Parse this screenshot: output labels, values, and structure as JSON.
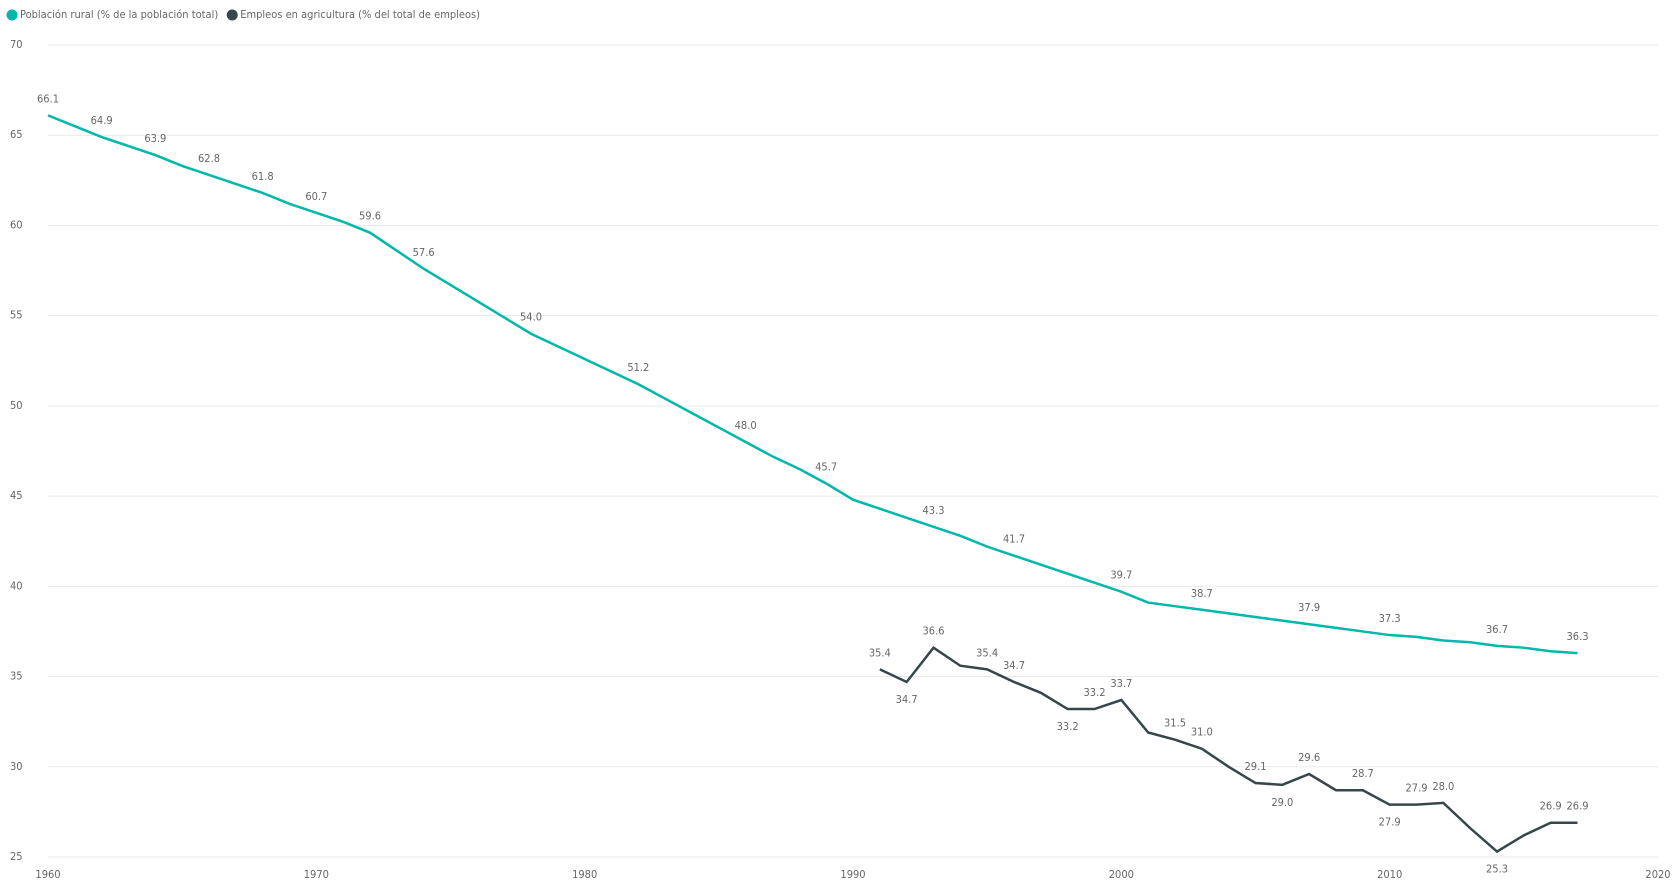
{
  "chart_data": {
    "type": "line",
    "series": [
      {
        "name": "Población rural (% de la población total)",
        "color": "#01b8aa",
        "x": [
          1960,
          1961,
          1962,
          1963,
          1964,
          1965,
          1966,
          1967,
          1968,
          1969,
          1970,
          1971,
          1972,
          1973,
          1974,
          1975,
          1976,
          1977,
          1978,
          1979,
          1980,
          1981,
          1982,
          1983,
          1984,
          1985,
          1986,
          1987,
          1988,
          1989,
          1990,
          1991,
          1992,
          1993,
          1994,
          1995,
          1996,
          1997,
          1998,
          1999,
          2000,
          2001,
          2002,
          2003,
          2004,
          2005,
          2006,
          2007,
          2008,
          2009,
          2010,
          2011,
          2012,
          2013,
          2014,
          2015,
          2016,
          2017
        ],
        "values": [
          66.1,
          65.5,
          64.9,
          64.4,
          63.9,
          63.3,
          62.8,
          62.3,
          61.8,
          61.2,
          60.7,
          60.2,
          59.6,
          58.6,
          57.6,
          56.7,
          55.8,
          54.9,
          54.0,
          53.3,
          52.6,
          51.9,
          51.2,
          50.4,
          49.6,
          48.8,
          48.0,
          47.2,
          46.5,
          45.7,
          44.8,
          44.3,
          43.8,
          43.3,
          42.8,
          42.2,
          41.7,
          41.2,
          40.7,
          40.2,
          39.7,
          39.1,
          38.9,
          38.7,
          38.5,
          38.3,
          38.1,
          37.9,
          37.7,
          37.5,
          37.3,
          37.2,
          37.0,
          36.9,
          36.7,
          36.6,
          36.4,
          36.3
        ],
        "value_labels": [
          "66.1",
          null,
          "64.9",
          null,
          "63.9",
          null,
          "62.8",
          null,
          "61.8",
          null,
          "60.7",
          null,
          "59.6",
          null,
          "57.6",
          null,
          null,
          null,
          "54.0",
          null,
          null,
          null,
          "51.2",
          null,
          null,
          null,
          "48.0",
          null,
          null,
          "45.7",
          null,
          null,
          null,
          "43.3",
          null,
          null,
          "41.7",
          null,
          null,
          null,
          "39.7",
          null,
          null,
          "38.7",
          null,
          null,
          null,
          "37.9",
          null,
          null,
          "37.3",
          null,
          null,
          null,
          "36.7",
          null,
          null,
          "36.3"
        ]
      },
      {
        "name": "Empleos en agricultura (% del total de empleos)",
        "color": "#374649",
        "x": [
          1991,
          1992,
          1993,
          1994,
          1995,
          1996,
          1997,
          1998,
          1999,
          2000,
          2001,
          2002,
          2003,
          2004,
          2005,
          2006,
          2007,
          2008,
          2009,
          2010,
          2011,
          2012,
          2013,
          2014,
          2015,
          2016,
          2017
        ],
        "values": [
          35.4,
          34.7,
          36.6,
          35.6,
          35.4,
          34.7,
          34.1,
          33.2,
          33.2,
          33.7,
          31.9,
          31.5,
          31.0,
          30.0,
          29.1,
          29.0,
          29.6,
          28.7,
          28.7,
          27.9,
          27.9,
          28.0,
          26.6,
          25.3,
          26.2,
          26.9,
          26.9
        ],
        "value_labels": [
          "35.4",
          "34.7",
          "36.6",
          null,
          "35.4",
          "34.7",
          null,
          "33.2",
          "33.2",
          "33.7",
          null,
          "31.5",
          "31.0",
          null,
          "29.1",
          "29.0",
          "29.6",
          null,
          "28.7",
          "27.9",
          "27.9",
          "28.0",
          null,
          "25.3",
          null,
          "26.9",
          "26.9"
        ]
      }
    ],
    "xlim": [
      1960,
      2020
    ],
    "xticks": [
      1960,
      1970,
      1980,
      1990,
      2000,
      2010,
      2020
    ],
    "ylim": [
      25,
      70
    ],
    "yticks": [
      25,
      30,
      35,
      40,
      45,
      50,
      55,
      60,
      65,
      70
    ],
    "grid": true,
    "legend": "top-left"
  }
}
